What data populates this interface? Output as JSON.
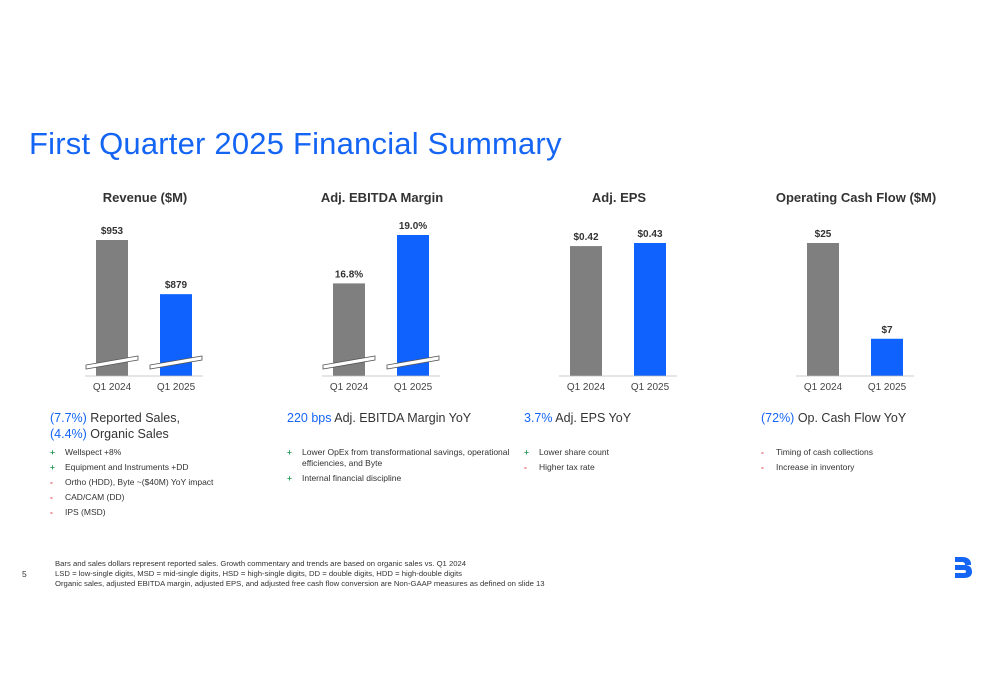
{
  "page": {
    "title": "First Quarter 2025 Financial Summary",
    "page_number": "5",
    "accent_color": "#1565f5",
    "bar_colors": {
      "prior": "#7f7f7f",
      "current": "#0f62fe"
    },
    "footnotes": [
      "Bars and sales dollars represent reported sales. Growth commentary and trends are based on organic sales vs. Q1 2024",
      "LSD = low-single digits, MSD = mid-single digits, HSD = high-single digits, DD = double digits, HDD = high-double digits",
      "Organic sales, adjusted EBITDA margin, adjusted EPS, and adjusted free cash flow conversion are Non-GAAP measures as defined on slide 13"
    ]
  },
  "panels": [
    {
      "title": "Revenue ($M)",
      "yoy": [
        {
          "hl": "(7.7%)",
          "text": " Reported Sales,"
        },
        {
          "hl": "(4.4%)",
          "text": " Organic Sales"
        }
      ],
      "bullets": [
        {
          "sign": "+",
          "text": "Wellspect +8%"
        },
        {
          "sign": "+",
          "text": "Equipment and Instruments +DD"
        },
        {
          "sign": "-",
          "text": "Ortho (HDD), Byte ~($40M) YoY impact"
        },
        {
          "sign": "-",
          "text": "CAD/CAM (DD)"
        },
        {
          "sign": "-",
          "text": "IPS (MSD)"
        }
      ]
    },
    {
      "title": "Adj. EBITDA Margin",
      "yoy": [
        {
          "hl": "220 bps",
          "text": " Adj. EBITDA Margin YoY"
        }
      ],
      "bullets": [
        {
          "sign": "+",
          "text": "Lower OpEx from transformational savings, operational efficiencies, and Byte"
        },
        {
          "sign": "+",
          "text": "Internal financial discipline"
        }
      ]
    },
    {
      "title": "Adj. EPS",
      "yoy": [
        {
          "hl": "3.7%",
          "text": " Adj. EPS YoY"
        }
      ],
      "bullets": [
        {
          "sign": "+",
          "text": "Lower share count"
        },
        {
          "sign": "-",
          "text": "Higher tax rate"
        }
      ]
    },
    {
      "title": "Operating Cash Flow ($M)",
      "yoy": [
        {
          "hl": "(72%)",
          "text": " Op. Cash Flow YoY"
        }
      ],
      "bullets": [
        {
          "sign": "-",
          "text": "Timing of cash collections"
        },
        {
          "sign": "-",
          "text": "Increase in inventory"
        }
      ]
    }
  ],
  "chart_data": [
    {
      "type": "bar",
      "title": "Revenue ($M)",
      "categories": [
        "Q1 2024",
        "Q1 2025"
      ],
      "values": [
        953,
        879
      ],
      "labels": [
        "$953",
        "$879"
      ],
      "axis_break": true
    },
    {
      "type": "bar",
      "title": "Adj. EBITDA Margin",
      "categories": [
        "Q1 2024",
        "Q1 2025"
      ],
      "values": [
        16.8,
        19.0
      ],
      "labels": [
        "16.8%",
        "19.0%"
      ],
      "axis_break": true
    },
    {
      "type": "bar",
      "title": "Adj. EPS",
      "categories": [
        "Q1 2024",
        "Q1 2025"
      ],
      "values": [
        0.42,
        0.43
      ],
      "labels": [
        "$0.42",
        "$0.43"
      ],
      "axis_break": false
    },
    {
      "type": "bar",
      "title": "Operating Cash Flow ($M)",
      "categories": [
        "Q1 2024",
        "Q1 2025"
      ],
      "values": [
        25,
        7
      ],
      "labels": [
        "$25",
        "$7"
      ],
      "axis_break": false
    }
  ]
}
